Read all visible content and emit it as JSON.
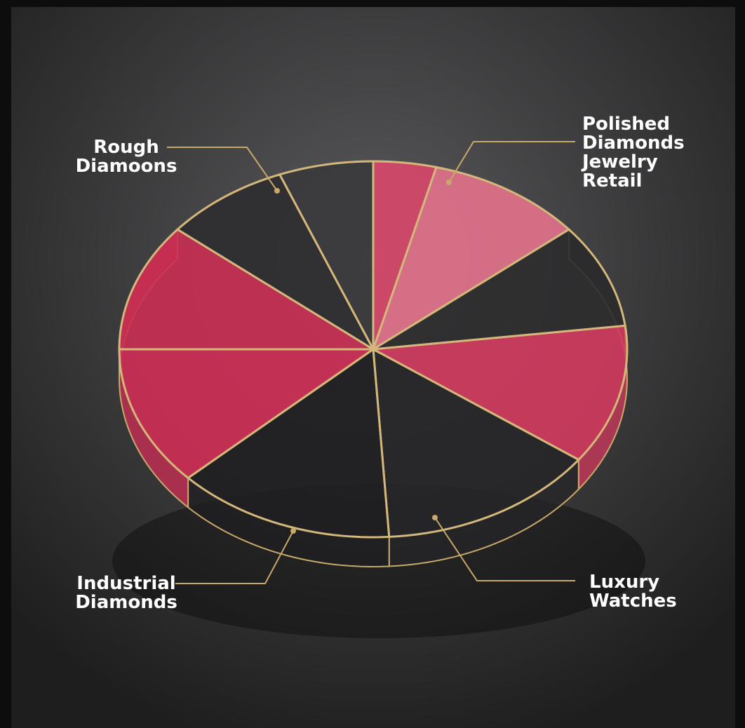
{
  "chart_data": {
    "type": "pie",
    "categories": [
      null,
      "Polished Diamonds Jewelry Retail",
      null,
      null,
      null,
      "Luxury Watches",
      "Industrial Diamonds",
      null,
      null,
      "Rough Diamoons"
    ],
    "values": [
      4,
      10,
      9,
      12,
      14,
      14,
      12,
      11,
      8,
      6
    ],
    "colors": [
      "#d9476a",
      "#e2728c",
      "#2c2c2e",
      "#d23a5e",
      "#262628",
      "#1f1f21",
      "#cf2f55",
      "#c92d52",
      "#2e2e30",
      "#3a3a3c"
    ]
  }
}
